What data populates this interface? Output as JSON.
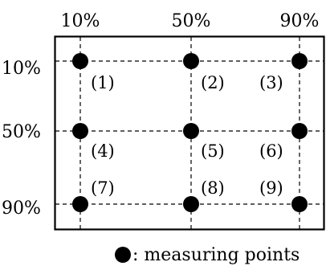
{
  "column_labels": [
    "10%",
    "50%",
    "90%"
  ],
  "row_labels": [
    "10%",
    "50%",
    "90%"
  ],
  "point_labels": [
    "(1)",
    "(2)",
    "(3)",
    "(4)",
    "(5)",
    "(6)",
    "(7)",
    "(8)",
    "(9)"
  ],
  "legend": {
    "symbol": "●",
    "text": ": measuring points"
  },
  "colors": {
    "line": "#000000",
    "point": "#000000",
    "background": "#ffffff"
  }
}
